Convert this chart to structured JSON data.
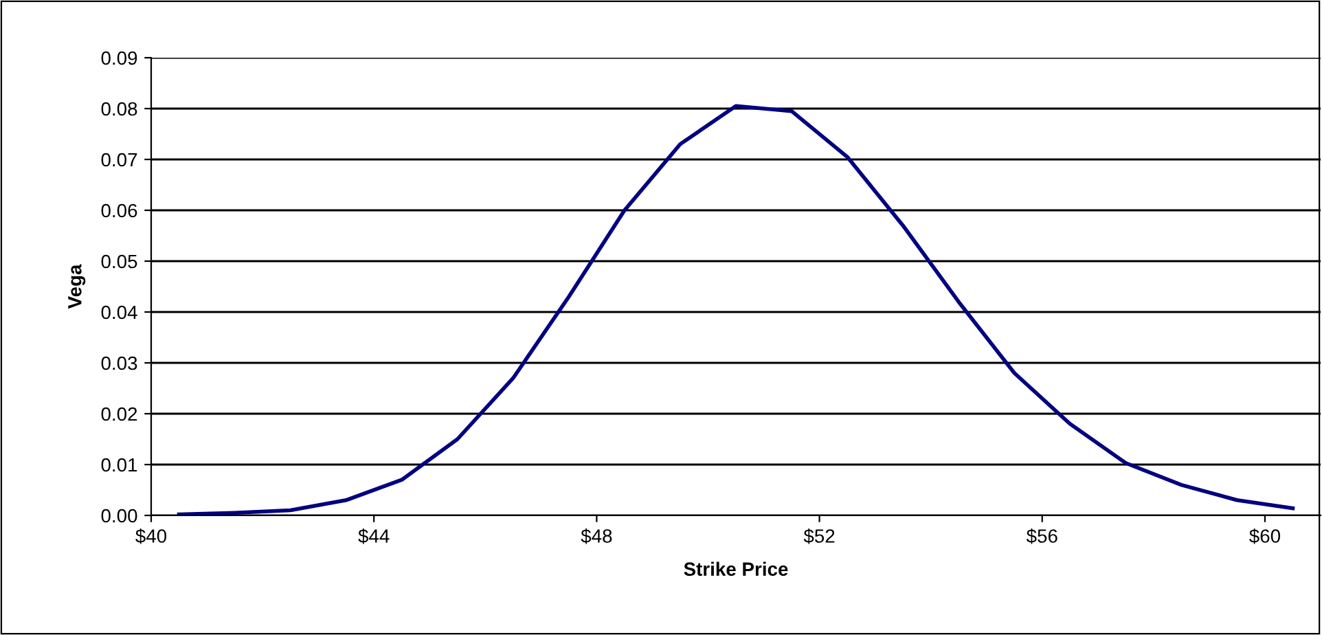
{
  "chart_data": {
    "type": "line",
    "xlabel": "Strike Price",
    "ylabel": "Vega",
    "x": [
      40.5,
      41.5,
      42.5,
      43.5,
      44.5,
      45.5,
      46.5,
      47.5,
      48.5,
      49.5,
      50.5,
      51.5,
      52.5,
      53.5,
      54.5,
      55.5,
      56.5,
      57.5,
      58.5,
      59.5,
      60.5
    ],
    "series": [
      {
        "color": "#000080",
        "values": [
          0.0002,
          0.0005,
          0.001,
          0.003,
          0.007,
          0.015,
          0.027,
          0.043,
          0.06,
          0.073,
          0.0805,
          0.0795,
          0.0705,
          0.057,
          0.042,
          0.028,
          0.018,
          0.0103,
          0.006,
          0.003,
          0.0014
        ]
      }
    ],
    "xlim": [
      40,
      61
    ],
    "xticks": [
      {
        "value": 40,
        "label": "$40"
      },
      {
        "value": 44,
        "label": "$44"
      },
      {
        "value": 48,
        "label": "$48"
      },
      {
        "value": 52,
        "label": "$52"
      },
      {
        "value": 56,
        "label": "$56"
      },
      {
        "value": 60,
        "label": "$60"
      }
    ],
    "ylim": [
      0,
      0.09
    ],
    "yticks": [
      {
        "value": 0,
        "label": "0.00"
      },
      {
        "value": 0.01,
        "label": "0.01"
      },
      {
        "value": 0.02,
        "label": "0.02"
      },
      {
        "value": 0.03,
        "label": "0.03"
      },
      {
        "value": 0.04,
        "label": "0.04"
      },
      {
        "value": 0.05,
        "label": "0.05"
      },
      {
        "value": 0.06,
        "label": "0.06"
      },
      {
        "value": 0.07,
        "label": "0.07"
      },
      {
        "value": 0.08,
        "label": "0.08"
      },
      {
        "value": 0.09,
        "label": "0.09"
      }
    ],
    "grid": "y",
    "legend": false,
    "marker": "none",
    "line_style": "solid"
  }
}
